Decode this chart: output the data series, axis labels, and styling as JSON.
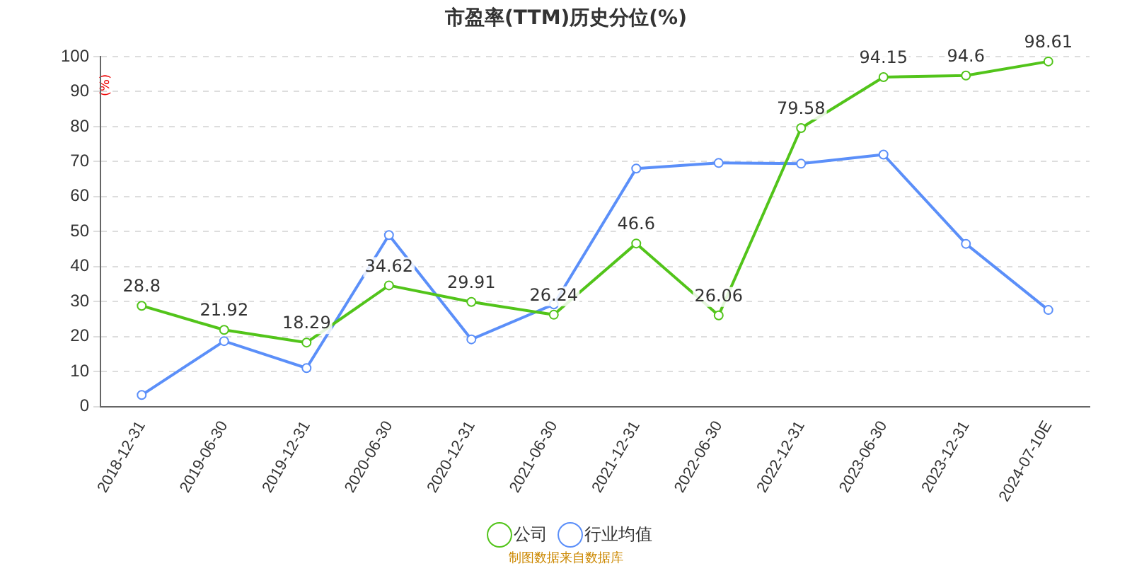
{
  "chart_data": {
    "type": "line",
    "title": "市盈率(TTM)历史分位(%)",
    "ylabel": "(%)",
    "categories": [
      "2018-12-31",
      "2019-06-30",
      "2019-12-31",
      "2020-06-30",
      "2020-12-31",
      "2021-06-30",
      "2021-12-31",
      "2022-06-30",
      "2022-12-31",
      "2023-06-30",
      "2023-12-31",
      "2024-07-10E"
    ],
    "series": [
      {
        "name": "公司",
        "color": "#52c41a",
        "values": [
          28.8,
          21.92,
          18.29,
          34.62,
          29.91,
          26.24,
          46.6,
          26.06,
          79.58,
          94.15,
          94.6,
          98.61
        ],
        "value_labels": [
          "28.8",
          "21.92",
          "18.29",
          "34.62",
          "29.91",
          "26.24",
          "46.6",
          "26.06",
          "79.58",
          "94.15",
          "94.6",
          "98.61"
        ]
      },
      {
        "name": "行业均值",
        "color": "#5b8ff9",
        "values": [
          3.3,
          18.7,
          11,
          49,
          19.2,
          29.2,
          68,
          69.6,
          69.4,
          72,
          46.5,
          27.6
        ]
      }
    ],
    "ylim": [
      0,
      100
    ],
    "yticks": [
      0,
      10,
      20,
      30,
      40,
      50,
      60,
      70,
      80,
      90,
      100
    ],
    "grid": "y",
    "legend": "bottom",
    "marker": "circle",
    "line_style": "solid",
    "annotations": [
      "制图数据来自数据库"
    ]
  }
}
